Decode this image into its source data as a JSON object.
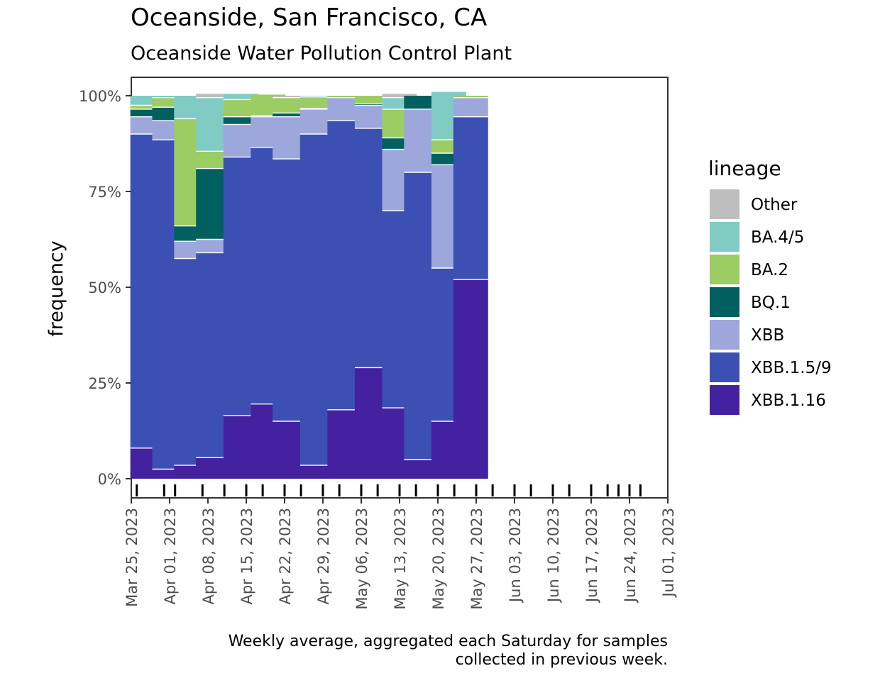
{
  "chart_data": {
    "type": "bar",
    "stacked": true,
    "title": "Oceanside, San Francisco, CA",
    "subtitle": "Oceanside Water Pollution Control Plant",
    "caption": [
      "Weekly average, aggregated each Saturday for samples",
      "collected in previous week."
    ],
    "xlabel": "",
    "ylabel": "frequency",
    "ylim": [
      0,
      100
    ],
    "y_ticks": [
      0,
      25,
      50,
      75,
      100
    ],
    "y_tick_labels": [
      "0%",
      "25%",
      "50%",
      "75%",
      "100%"
    ],
    "x_ticks": [
      "Mar 25, 2023",
      "Apr 01, 2023",
      "Apr 08, 2023",
      "Apr 15, 2023",
      "Apr 22, 2023",
      "Apr 29, 2023",
      "May 06, 2023",
      "May 13, 2023",
      "May 20, 2023",
      "May 27, 2023",
      "Jun 03, 2023",
      "Jun 10, 2023",
      "Jun 17, 2023",
      "Jun 24, 2023",
      "Jul 01, 2023"
    ],
    "categories": [
      "Mar 28, 2023",
      "Apr 01, 2023",
      "Apr 05, 2023",
      "Apr 09, 2023",
      "Apr 14, 2023",
      "Apr 19, 2023",
      "Apr 23, 2023",
      "Apr 28, 2023",
      "May 03, 2023",
      "May 08, 2023",
      "May 13, 2023",
      "May 17, 2023",
      "May 22, 2023",
      "May 26, 2023"
    ],
    "legend": {
      "title": "lineage",
      "position": "right"
    },
    "series": [
      {
        "name": "XBB.1.16",
        "color": "#44219e",
        "values": [
          8,
          2.5,
          3.5,
          5.5,
          16.5,
          19.5,
          15,
          3.5,
          18,
          29,
          18.5,
          5,
          15,
          52
        ]
      },
      {
        "name": "XBB.1.5/9",
        "color": "#3c50b4",
        "values": [
          82,
          86,
          54,
          53.5,
          67.5,
          67,
          68.5,
          86.5,
          75.5,
          62.5,
          51.5,
          75,
          40,
          42.5
        ]
      },
      {
        "name": "XBB",
        "color": "#9ea7dc",
        "values": [
          4.5,
          5,
          4.5,
          3.5,
          8.5,
          8,
          11,
          6.5,
          6,
          6,
          16,
          16.5,
          27,
          5
        ]
      },
      {
        "name": "BQ.1",
        "color": "#006060",
        "values": [
          2,
          3.5,
          4,
          18.5,
          2,
          0.3,
          1,
          0.2,
          0,
          0.5,
          3,
          3.5,
          3,
          0
        ]
      },
      {
        "name": "BA.2",
        "color": "#9ccc64",
        "values": [
          1,
          2.5,
          28,
          4.5,
          4.5,
          5.5,
          4,
          3,
          0.5,
          2,
          7.5,
          0,
          3.5,
          0.5
        ]
      },
      {
        "name": "BA.4/5",
        "color": "#80ccc4",
        "values": [
          2.5,
          0.5,
          6,
          14,
          1.5,
          0,
          0,
          0.3,
          0,
          0,
          3,
          0,
          12.5,
          0
        ]
      },
      {
        "name": "Other",
        "color": "#bebebe",
        "values": [
          0,
          0,
          0,
          1,
          0,
          0,
          0.5,
          0,
          0,
          0,
          1,
          0,
          0,
          0
        ]
      }
    ],
    "legend_order": [
      "Other",
      "BA.4/5",
      "BA.2",
      "BQ.1",
      "XBB",
      "XBB.1.5/9",
      "XBB.1.16"
    ],
    "rug_dates": [
      "Mar 26, 2023",
      "Mar 31, 2023",
      "Apr 02, 2023",
      "Apr 07, 2023",
      "Apr 11, 2023",
      "Apr 15, 2023",
      "Apr 18, 2023",
      "Apr 22, 2023",
      "Apr 25, 2023",
      "Apr 29, 2023",
      "May 02, 2023",
      "May 06, 2023",
      "May 09, 2023",
      "May 13, 2023",
      "May 16, 2023",
      "May 20, 2023",
      "May 23, 2023",
      "May 27, 2023",
      "May 30, 2023",
      "Jun 03, 2023",
      "Jun 06, 2023",
      "Jun 10, 2023",
      "Jun 13, 2023",
      "Jun 17, 2023",
      "Jun 20, 2023",
      "Jun 22, 2023",
      "Jun 24, 2023",
      "Jun 26, 2023"
    ]
  }
}
